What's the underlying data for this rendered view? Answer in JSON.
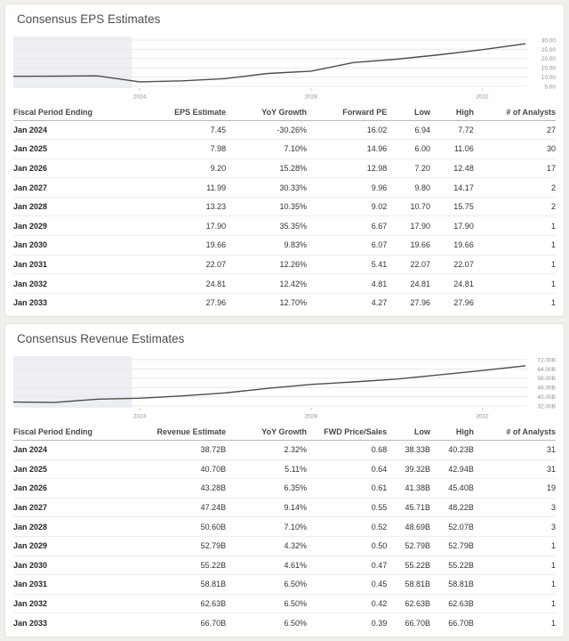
{
  "theme": {
    "page_background": "#f1efec",
    "card_background": "#ffffff",
    "line_color": "#4d4d4d",
    "historical_shade_color": "#edeff5",
    "grid_color": "#e8e8e8",
    "tick_color": "#c9c9c9",
    "tick_label_color": "#919191"
  },
  "sections": [
    {
      "title": "Consensus EPS Estimates",
      "chart_data": {
        "type": "line",
        "title": "Consensus EPS Estimates",
        "xlabel": "",
        "ylabel": "",
        "grid": true,
        "legend": false,
        "xlim": [
          2021.05,
          2033.05
        ],
        "ylim": [
          5,
          30
        ],
        "x_tick_values": [
          2024,
          2028,
          2032
        ],
        "x_tick_labels": [
          "2024",
          "2028",
          "2032"
        ],
        "y_tick_values": [
          30,
          25,
          20,
          15,
          10,
          5
        ],
        "y_tick_labels": [
          "30.00",
          "25.00",
          "20.00",
          "15.00",
          "10.00",
          "5.00"
        ],
        "historical_shade_range": [
          2021.05,
          2023.82
        ],
        "series": [
          {
            "name": "EPS Estimate",
            "x": [
              2021.05,
              2022.0,
              2023.0,
              2024,
              2025,
              2026,
              2027,
              2028,
              2029,
              2030,
              2031,
              2032,
              2033
            ],
            "values": [
              10.45,
              10.5,
              10.68,
              7.45,
              7.98,
              9.2,
              11.99,
              13.23,
              17.9,
              19.66,
              22.07,
              24.81,
              27.96
            ]
          }
        ]
      },
      "table": {
        "headers": [
          "Fiscal Period Ending",
          "EPS Estimate",
          "YoY Growth",
          "Forward PE",
          "Low",
          "High",
          "# of Analysts"
        ],
        "rows": [
          [
            "Jan 2024",
            "7.45",
            "-30.26%",
            "16.02",
            "6.94",
            "7.72",
            "27"
          ],
          [
            "Jan 2025",
            "7.98",
            "7.10%",
            "14.96",
            "6.00",
            "11.06",
            "30"
          ],
          [
            "Jan 2026",
            "9.20",
            "15.28%",
            "12.98",
            "7.20",
            "12.48",
            "17"
          ],
          [
            "Jan 2027",
            "11.99",
            "30.33%",
            "9.96",
            "9.80",
            "14.17",
            "2"
          ],
          [
            "Jan 2028",
            "13.23",
            "10.35%",
            "9.02",
            "10.70",
            "15.75",
            "2"
          ],
          [
            "Jan 2029",
            "17.90",
            "35.35%",
            "6.67",
            "17.90",
            "17.90",
            "1"
          ],
          [
            "Jan 2030",
            "19.66",
            "9.83%",
            "6.07",
            "19.66",
            "19.66",
            "1"
          ],
          [
            "Jan 2031",
            "22.07",
            "12.26%",
            "5.41",
            "22.07",
            "22.07",
            "1"
          ],
          [
            "Jan 2032",
            "24.81",
            "12.42%",
            "4.81",
            "24.81",
            "24.81",
            "1"
          ],
          [
            "Jan 2033",
            "27.96",
            "12.70%",
            "4.27",
            "27.96",
            "27.96",
            "1"
          ]
        ]
      }
    },
    {
      "title": "Consensus Revenue Estimates",
      "chart_data": {
        "type": "line",
        "title": "Consensus Revenue Estimates",
        "xlabel": "",
        "ylabel": "",
        "grid": true,
        "legend": false,
        "xlim": [
          2021.05,
          2033.05
        ],
        "ylim": [
          32,
          72
        ],
        "x_tick_values": [
          2024,
          2028,
          2032
        ],
        "x_tick_labels": [
          "2024",
          "2028",
          "2032"
        ],
        "y_tick_values": [
          72,
          64,
          56,
          48,
          40,
          32
        ],
        "y_tick_labels": [
          "72.00B",
          "64.00B",
          "56.00B",
          "48.00B",
          "40.00B",
          "32.00B"
        ],
        "historical_shade_range": [
          2021.05,
          2023.82
        ],
        "series": [
          {
            "name": "Revenue Estimate (B)",
            "x": [
              2021.05,
              2022.0,
              2023.0,
              2024,
              2025,
              2026,
              2027,
              2028,
              2029,
              2030,
              2031,
              2032,
              2033
            ],
            "values": [
              35.4,
              35.0,
              37.84,
              38.72,
              40.7,
              43.28,
              47.24,
              50.6,
              52.79,
              55.22,
              58.81,
              62.63,
              66.7
            ]
          }
        ]
      },
      "table": {
        "headers": [
          "Fiscal Period Ending",
          "Revenue Estimate",
          "YoY Growth",
          "FWD Price/Sales",
          "Low",
          "High",
          "# of Analysts"
        ],
        "rows": [
          [
            "Jan 2024",
            "38.72B",
            "2.32%",
            "0.68",
            "38.33B",
            "40.23B",
            "31"
          ],
          [
            "Jan 2025",
            "40.70B",
            "5.11%",
            "0.64",
            "39.32B",
            "42.94B",
            "31"
          ],
          [
            "Jan 2026",
            "43.28B",
            "6.35%",
            "0.61",
            "41.38B",
            "45.40B",
            "19"
          ],
          [
            "Jan 2027",
            "47.24B",
            "9.14%",
            "0.55",
            "45.71B",
            "48.22B",
            "3"
          ],
          [
            "Jan 2028",
            "50.60B",
            "7.10%",
            "0.52",
            "48.69B",
            "52.07B",
            "3"
          ],
          [
            "Jan 2029",
            "52.79B",
            "4.32%",
            "0.50",
            "52.79B",
            "52.79B",
            "1"
          ],
          [
            "Jan 2030",
            "55.22B",
            "4.61%",
            "0.47",
            "55.22B",
            "55.22B",
            "1"
          ],
          [
            "Jan 2031",
            "58.81B",
            "6.50%",
            "0.45",
            "58.81B",
            "58.81B",
            "1"
          ],
          [
            "Jan 2032",
            "62.63B",
            "6.50%",
            "0.42",
            "62.63B",
            "62.63B",
            "1"
          ],
          [
            "Jan 2033",
            "66.70B",
            "6.50%",
            "0.39",
            "66.70B",
            "66.70B",
            "1"
          ]
        ]
      }
    }
  ]
}
